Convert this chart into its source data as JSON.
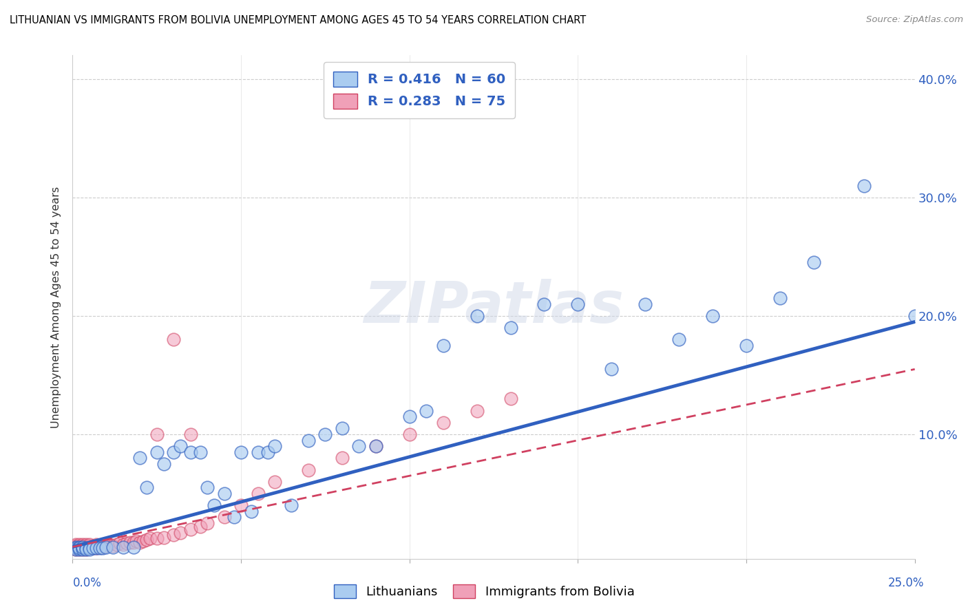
{
  "title": "LITHUANIAN VS IMMIGRANTS FROM BOLIVIA UNEMPLOYMENT AMONG AGES 45 TO 54 YEARS CORRELATION CHART",
  "source": "Source: ZipAtlas.com",
  "ylabel": "Unemployment Among Ages 45 to 54 years",
  "series_label_1": "Lithuanians",
  "series_label_2": "Immigrants from Bolivia",
  "series_color_1": "#aaccf0",
  "series_color_2": "#f0a0b8",
  "trend_color_1": "#3060c0",
  "trend_color_2": "#d04060",
  "R1": 0.416,
  "N1": 60,
  "R2": 0.283,
  "N2": 75,
  "xlim": [
    0,
    0.25
  ],
  "ylim": [
    -0.005,
    0.42
  ],
  "ytick_vals": [
    0.0,
    0.1,
    0.2,
    0.3,
    0.4
  ],
  "ytick_labels": [
    "",
    "10.0%",
    "20.0%",
    "30.0%",
    "40.0%"
  ],
  "xtick_positions": [
    0.0,
    0.05,
    0.1,
    0.15,
    0.2,
    0.25
  ],
  "lith_trend_x": [
    0.0,
    0.25
  ],
  "lith_trend_y": [
    0.005,
    0.195
  ],
  "boliv_trend_x": [
    0.0,
    0.25
  ],
  "boliv_trend_y": [
    0.005,
    0.155
  ],
  "watermark": "ZIPatlas",
  "lith_x": [
    0.001,
    0.001,
    0.001,
    0.002,
    0.002,
    0.002,
    0.003,
    0.003,
    0.003,
    0.004,
    0.004,
    0.005,
    0.005,
    0.006,
    0.007,
    0.008,
    0.009,
    0.01,
    0.012,
    0.015,
    0.018,
    0.02,
    0.022,
    0.025,
    0.027,
    0.03,
    0.032,
    0.035,
    0.038,
    0.04,
    0.042,
    0.045,
    0.048,
    0.05,
    0.053,
    0.055,
    0.058,
    0.06,
    0.065,
    0.07,
    0.075,
    0.08,
    0.085,
    0.09,
    0.1,
    0.105,
    0.11,
    0.12,
    0.13,
    0.14,
    0.15,
    0.16,
    0.17,
    0.18,
    0.19,
    0.2,
    0.21,
    0.22,
    0.235,
    0.25
  ],
  "lith_y": [
    0.005,
    0.004,
    0.003,
    0.005,
    0.003,
    0.004,
    0.004,
    0.003,
    0.005,
    0.004,
    0.003,
    0.004,
    0.003,
    0.004,
    0.004,
    0.004,
    0.004,
    0.005,
    0.005,
    0.005,
    0.005,
    0.08,
    0.055,
    0.085,
    0.075,
    0.085,
    0.09,
    0.085,
    0.085,
    0.055,
    0.04,
    0.05,
    0.03,
    0.085,
    0.035,
    0.085,
    0.085,
    0.09,
    0.04,
    0.095,
    0.1,
    0.105,
    0.09,
    0.09,
    0.115,
    0.12,
    0.175,
    0.2,
    0.19,
    0.21,
    0.21,
    0.155,
    0.21,
    0.18,
    0.2,
    0.175,
    0.215,
    0.245,
    0.31,
    0.2
  ],
  "boliv_x": [
    0.001,
    0.001,
    0.001,
    0.001,
    0.001,
    0.001,
    0.001,
    0.001,
    0.002,
    0.002,
    0.002,
    0.002,
    0.002,
    0.002,
    0.002,
    0.003,
    0.003,
    0.003,
    0.003,
    0.003,
    0.003,
    0.004,
    0.004,
    0.004,
    0.004,
    0.004,
    0.005,
    0.005,
    0.005,
    0.005,
    0.006,
    0.006,
    0.006,
    0.007,
    0.007,
    0.007,
    0.008,
    0.008,
    0.009,
    0.009,
    0.01,
    0.011,
    0.012,
    0.013,
    0.014,
    0.015,
    0.016,
    0.017,
    0.018,
    0.019,
    0.02,
    0.021,
    0.022,
    0.023,
    0.025,
    0.027,
    0.03,
    0.032,
    0.035,
    0.038,
    0.04,
    0.045,
    0.05,
    0.055,
    0.06,
    0.07,
    0.08,
    0.09,
    0.1,
    0.11,
    0.12,
    0.13,
    0.03,
    0.025,
    0.035
  ],
  "boliv_y": [
    0.005,
    0.004,
    0.006,
    0.003,
    0.005,
    0.006,
    0.004,
    0.007,
    0.005,
    0.004,
    0.006,
    0.003,
    0.005,
    0.007,
    0.004,
    0.005,
    0.004,
    0.006,
    0.003,
    0.007,
    0.005,
    0.004,
    0.005,
    0.006,
    0.003,
    0.007,
    0.004,
    0.005,
    0.006,
    0.007,
    0.004,
    0.005,
    0.006,
    0.004,
    0.005,
    0.007,
    0.005,
    0.006,
    0.005,
    0.007,
    0.006,
    0.007,
    0.006,
    0.007,
    0.008,
    0.007,
    0.008,
    0.009,
    0.009,
    0.01,
    0.009,
    0.01,
    0.011,
    0.012,
    0.012,
    0.013,
    0.015,
    0.017,
    0.02,
    0.022,
    0.025,
    0.03,
    0.04,
    0.05,
    0.06,
    0.07,
    0.08,
    0.09,
    0.1,
    0.11,
    0.12,
    0.13,
    0.18,
    0.1,
    0.1
  ]
}
